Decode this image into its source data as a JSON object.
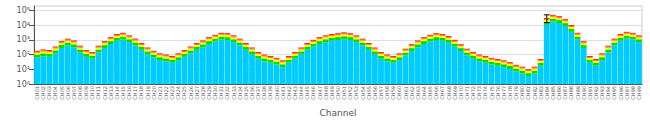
{
  "chart_data": {
    "type": "bar",
    "stacked": true,
    "log": "y",
    "grid": true,
    "xlabel": "Channel",
    "categories": [
      "CH01",
      "CH02",
      "CH03",
      "CH04",
      "CH05",
      "CH06",
      "CH07",
      "CH08",
      "CH09",
      "CH10",
      "CH11",
      "CH12",
      "CH13",
      "CH14",
      "CH15",
      "CH16",
      "CH17",
      "CH18",
      "CH19",
      "CH20",
      "CH21",
      "CH22",
      "CH23",
      "CH24",
      "CH25",
      "CH26",
      "CH27",
      "CH28",
      "CH29",
      "CH30",
      "CH31",
      "CH32",
      "CH33",
      "CH34",
      "CH35",
      "CH36",
      "CH37",
      "CH38",
      "CH39",
      "CH40",
      "CH41",
      "CH42",
      "CH43",
      "CH44",
      "CH45",
      "CH46",
      "CH47",
      "CH48",
      "CH49",
      "CH50",
      "CH51",
      "CH52",
      "CH53",
      "CH54",
      "CH55",
      "CH56",
      "CH57",
      "CH58",
      "CH59",
      "CH60",
      "CH61",
      "CH62",
      "CH63",
      "CH64",
      "CH65",
      "CH66",
      "CH67",
      "CH68",
      "CH69",
      "CH70",
      "CH71",
      "CH72",
      "CH73",
      "CH74",
      "CH75",
      "CH76",
      "CH77",
      "CH78",
      "CH79",
      "CH80",
      "CH81",
      "CH82",
      "CH83",
      "CH84",
      "CH85",
      "CH86",
      "CH87",
      "CH88",
      "CH89",
      "CH90",
      "CH91",
      "CH92",
      "CH93",
      "CH94",
      "CH95",
      "CH96",
      "CH97",
      "CH98",
      "CH99"
    ],
    "series": [
      {
        "color": "#00ccff",
        "values": [
          63,
          77,
          70,
          122.5,
          280,
          420,
          315,
          140,
          70,
          52.5,
          140,
          280,
          525,
          875,
          1050,
          700,
          420,
          210,
          105,
          63,
          42,
          35,
          28,
          42,
          70,
          122.5,
          210,
          315,
          525,
          770,
          1050,
          980,
          700,
          420,
          210,
          105,
          52.5,
          35,
          28,
          21,
          14,
          28,
          52.5,
          105,
          210,
          350,
          525,
          700,
          875,
          980,
          1120,
          980,
          700,
          420,
          210,
          105,
          52.5,
          35,
          28,
          42,
          87.5,
          175,
          315,
          525,
          770,
          980,
          875,
          630,
          350,
          175,
          87.5,
          52.5,
          35,
          28,
          21,
          17.5,
          14,
          10.5,
          7,
          5.25,
          3.5,
          5.25,
          17.5,
          10500,
          17500,
          14000,
          8750,
          3500,
          1050,
          280,
          28,
          17.5,
          42,
          140,
          420,
          875,
          1225,
          1050,
          700
        ]
      },
      {
        "color": "#00dd00",
        "values": [
          36,
          44,
          40,
          70,
          160,
          240,
          180,
          80,
          40,
          30,
          80,
          160,
          300,
          500,
          600,
          400,
          240,
          120,
          60,
          36,
          24,
          20,
          16,
          24,
          40,
          70,
          120,
          180,
          300,
          440,
          600,
          560,
          400,
          240,
          120,
          60,
          30,
          20,
          16,
          12,
          8,
          16,
          30,
          60,
          120,
          200,
          300,
          400,
          500,
          560,
          640,
          560,
          400,
          240,
          120,
          60,
          30,
          20,
          16,
          24,
          50,
          100,
          180,
          300,
          440,
          560,
          500,
          360,
          200,
          100,
          50,
          30,
          20,
          16,
          12,
          10,
          8,
          6,
          4,
          3,
          2,
          3,
          10,
          6000,
          10000,
          8000,
          5000,
          2000,
          600,
          160,
          16,
          10,
          24,
          80,
          240,
          500,
          700,
          600,
          400
        ]
      },
      {
        "color": "#ffff00",
        "values": [
          32.4,
          39.6,
          36,
          63,
          144,
          216,
          162,
          72,
          36,
          27,
          72,
          144,
          270,
          450,
          540,
          360,
          216,
          108,
          54,
          32.4,
          21.6,
          18,
          14.4,
          21.6,
          36,
          63,
          108,
          162,
          270,
          396,
          540,
          504,
          360,
          216,
          108,
          54,
          27,
          18,
          14.4,
          10.8,
          7.2,
          14.4,
          27,
          54,
          108,
          180,
          270,
          360,
          450,
          504,
          576,
          504,
          360,
          216,
          108,
          54,
          27,
          18,
          14.4,
          21.6,
          45,
          90,
          162,
          270,
          396,
          504,
          450,
          324,
          180,
          90,
          45,
          27,
          18,
          14.4,
          10.8,
          9,
          7.2,
          5.4,
          3.6,
          2.7,
          1.8,
          2.7,
          9,
          5400,
          9000,
          7200,
          4500,
          1800,
          540,
          144,
          14.4,
          9,
          21.6,
          72,
          216,
          450,
          630,
          540,
          360
        ]
      },
      {
        "color": "#ff8800",
        "values": [
          27,
          33,
          30,
          52.5,
          120,
          180,
          135,
          60,
          30,
          22.5,
          60,
          120,
          225,
          375,
          450,
          300,
          180,
          90,
          45,
          27,
          18,
          15,
          12,
          18,
          30,
          52.5,
          90,
          135,
          225,
          330,
          450,
          420,
          300,
          180,
          90,
          45,
          22.5,
          15,
          12,
          9,
          6,
          12,
          22.5,
          45,
          90,
          150,
          225,
          300,
          375,
          420,
          480,
          420,
          300,
          180,
          90,
          45,
          22.5,
          15,
          12,
          18,
          37.5,
          75,
          135,
          225,
          330,
          420,
          375,
          270,
          150,
          75,
          37.5,
          22.5,
          15,
          12,
          9,
          7.5,
          6,
          4.5,
          3,
          2.25,
          1.5,
          2.25,
          7.5,
          4500,
          7500,
          6000,
          3750,
          1500,
          450,
          120,
          12,
          7.5,
          18,
          60,
          180,
          375,
          525,
          450,
          300
        ]
      },
      {
        "color": "#ff0000",
        "values": [
          21.6,
          26.4,
          24,
          42,
          96,
          144,
          108,
          48,
          24,
          18,
          48,
          96,
          180,
          300,
          360,
          240,
          144,
          72,
          36,
          21.6,
          14.4,
          12,
          9.6,
          14.4,
          24,
          42,
          72,
          108,
          180,
          264,
          360,
          336,
          240,
          144,
          72,
          36,
          18,
          12,
          9.6,
          7.2,
          4.8,
          9.6,
          18,
          36,
          72,
          120,
          180,
          240,
          300,
          336,
          384,
          336,
          240,
          144,
          72,
          36,
          18,
          12,
          9.6,
          14.4,
          30,
          60,
          108,
          180,
          264,
          336,
          300,
          216,
          120,
          60,
          30,
          18,
          12,
          9.6,
          7.2,
          6,
          4.8,
          3.6,
          2.4,
          1.8,
          1.2,
          1.8,
          6,
          3600,
          6000,
          4800,
          3000,
          1200,
          360,
          96,
          9.6,
          6,
          14.4,
          48,
          144,
          300,
          420,
          360,
          240
        ]
      }
    ],
    "error_bar": {
      "category": "CH84",
      "value": 30000,
      "low": 15000,
      "high": 50000,
      "color": "#000000"
    },
    "ylim": [
      1,
      200000
    ],
    "yticks": [
      {
        "value": 1,
        "label": "10⁰"
      },
      {
        "value": 10,
        "label": "10¹"
      },
      {
        "value": 100,
        "label": "10²"
      },
      {
        "value": 1000,
        "label": "10³"
      },
      {
        "value": 10000,
        "label": "10⁴"
      },
      {
        "value": 100000,
        "label": "10⁵"
      }
    ]
  }
}
